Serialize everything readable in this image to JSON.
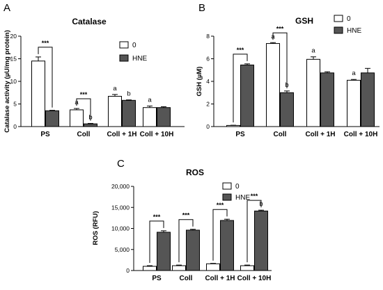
{
  "chart_data": [
    {
      "panel_label": "A",
      "type": "bar",
      "title": "Catalase",
      "ylabel": "Catalase activity (µU/mg protein)",
      "xlabel": "",
      "ylim": [
        0,
        20
      ],
      "yticks": [
        0,
        5,
        10,
        15,
        20
      ],
      "ytick_labels": [
        "0",
        "5",
        "10",
        "15",
        "20"
      ],
      "categories": [
        "PS",
        "Coll",
        "Coll + 1H",
        "Coll + 10H"
      ],
      "legend_position": "upper-right",
      "colors": {
        "0": "#ffffff",
        "HNE": "#555555"
      },
      "series": [
        {
          "name": "0",
          "values": [
            14.5,
            3.7,
            6.7,
            4.2
          ],
          "errors": [
            0.9,
            0.3,
            0.4,
            0.35
          ]
        },
        {
          "name": "HNE",
          "values": [
            3.5,
            0.6,
            5.8,
            4.2
          ],
          "errors": [
            0.1,
            0.1,
            0.1,
            0.2
          ]
        }
      ],
      "annotations": [
        {
          "category": 1,
          "series": 0,
          "text": "a"
        },
        {
          "category": 1,
          "series": 1,
          "text": "b"
        },
        {
          "category": 2,
          "series": 0,
          "text": "a"
        },
        {
          "category": 2,
          "series": 1,
          "text": "b"
        },
        {
          "category": 3,
          "series": 0,
          "text": "a"
        }
      ],
      "significance": [
        {
          "category": 0,
          "text": "***"
        },
        {
          "category": 1,
          "text": "***"
        }
      ]
    },
    {
      "panel_label": "B",
      "type": "bar",
      "title": "GSH",
      "ylabel": "GSH (µM)",
      "xlabel": "",
      "ylim": [
        0,
        8
      ],
      "yticks": [
        0,
        2,
        4,
        6,
        8
      ],
      "ytick_labels": [
        "0",
        "2",
        "4",
        "6",
        "8"
      ],
      "categories": [
        "PS",
        "Coll",
        "Coll + 1H",
        "Coll + 10H"
      ],
      "legend_position": "upper-right",
      "colors": {
        "0": "#ffffff",
        "HNE": "#555555"
      },
      "series": [
        {
          "name": "0",
          "values": [
            0.1,
            7.35,
            5.95,
            4.1
          ],
          "errors": [
            0.02,
            0.08,
            0.22,
            0.07
          ]
        },
        {
          "name": "HNE",
          "values": [
            5.45,
            3.0,
            4.75,
            4.75
          ],
          "errors": [
            0.1,
            0.15,
            0.1,
            0.4
          ]
        }
      ],
      "annotations": [
        {
          "category": 1,
          "series": 0,
          "text": "a"
        },
        {
          "category": 1,
          "series": 1,
          "text": "b"
        },
        {
          "category": 2,
          "series": 0,
          "text": "a"
        },
        {
          "category": 3,
          "series": 0,
          "text": "a"
        }
      ],
      "significance": [
        {
          "category": 0,
          "text": "***"
        },
        {
          "category": 1,
          "text": "***"
        }
      ]
    },
    {
      "panel_label": "C",
      "type": "bar",
      "title": "ROS",
      "ylabel": "ROS (RFU)",
      "xlabel": "",
      "ylim": [
        0,
        20000
      ],
      "yticks": [
        0,
        5000,
        10000,
        15000,
        20000
      ],
      "ytick_labels": [
        "0",
        "5,000",
        "10,000",
        "15,000",
        "20,000"
      ],
      "categories": [
        "PS",
        "Coll",
        "Coll + 1H",
        "Coll + 10H"
      ],
      "legend_position": "upper-right",
      "colors": {
        "0": "#ffffff",
        "HNE": "#555555"
      },
      "series": [
        {
          "name": "0",
          "values": [
            1000,
            1150,
            1600,
            1150
          ],
          "errors": [
            150,
            150,
            100,
            150
          ]
        },
        {
          "name": "HNE",
          "values": [
            9100,
            9600,
            11900,
            14150
          ],
          "errors": [
            350,
            200,
            300,
            200
          ]
        }
      ],
      "annotations": [
        {
          "category": 3,
          "series": 1,
          "text": "b"
        }
      ],
      "significance": [
        {
          "category": 0,
          "text": "***"
        },
        {
          "category": 1,
          "text": "***"
        },
        {
          "category": 2,
          "text": "***"
        },
        {
          "category": 3,
          "text": "***"
        }
      ]
    }
  ]
}
